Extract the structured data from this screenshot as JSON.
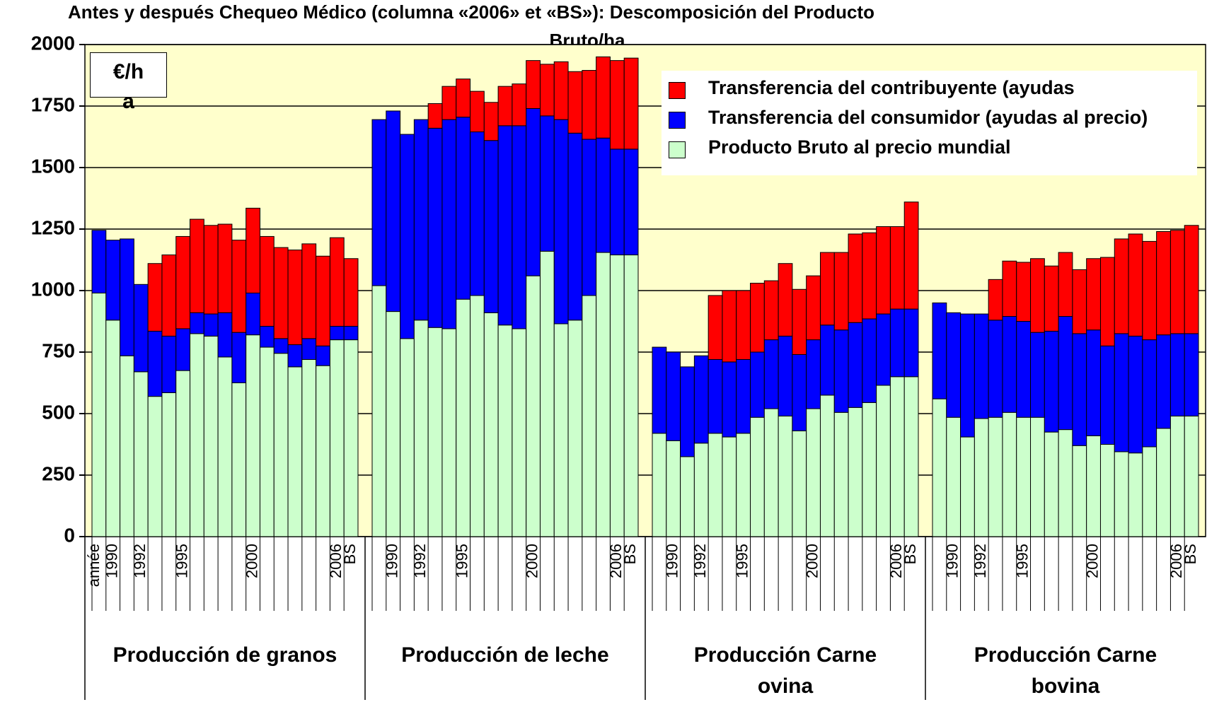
{
  "chart_data": {
    "type": "bar",
    "stacked": true,
    "title": [
      "Antes y después Chequeo Médico (columna  «2006» et  «BS»): Descomposición del Producto",
      "Bruto/ha"
    ],
    "ylabel": "€/ha",
    "xlabel": "année",
    "group_labels": [
      "Producción de granos",
      "Producción de leche",
      "Producción Carne ovina",
      "Producción Carne bovina"
    ],
    "categories": [
      null,
      "1990",
      null,
      "1992",
      null,
      null,
      "1995",
      null,
      null,
      null,
      null,
      "2000",
      null,
      null,
      null,
      null,
      null,
      "2006",
      "BS",
      null,
      "1990",
      null,
      "1992",
      null,
      null,
      "1995",
      null,
      null,
      null,
      null,
      "2000",
      null,
      null,
      null,
      null,
      null,
      "2006",
      "BS",
      null,
      "1990",
      null,
      "1992",
      null,
      null,
      "1995",
      null,
      null,
      null,
      null,
      "2000",
      null,
      null,
      null,
      null,
      null,
      "2006",
      "BS",
      null,
      "1990",
      null,
      "1992",
      null,
      null,
      "1995",
      null,
      null,
      null,
      null,
      "2000",
      null,
      null,
      null,
      null,
      null,
      "2006",
      "BS"
    ],
    "series": [
      {
        "name": "Producto Bruto al precio mundial",
        "color": "#ccffcc",
        "values": [
          990,
          880,
          735,
          670,
          570,
          585,
          675,
          825,
          815,
          730,
          625,
          820,
          770,
          745,
          690,
          720,
          695,
          800,
          800,
          1020,
          915,
          805,
          880,
          850,
          845,
          965,
          980,
          910,
          860,
          845,
          1060,
          1160,
          865,
          880,
          980,
          1155,
          1145,
          1145,
          420,
          390,
          325,
          380,
          420,
          405,
          420,
          485,
          520,
          490,
          430,
          520,
          575,
          505,
          525,
          545,
          615,
          650,
          650,
          560,
          485,
          405,
          480,
          485,
          505,
          485,
          485,
          425,
          435,
          370,
          410,
          375,
          345,
          340,
          365,
          440,
          490,
          490
        ]
      },
      {
        "name": "Transferencia del consumidor (ayudas al precio)",
        "color": "#0000ff",
        "values": [
          255,
          325,
          475,
          355,
          265,
          230,
          170,
          85,
          90,
          180,
          205,
          170,
          85,
          60,
          90,
          85,
          80,
          55,
          55,
          675,
          815,
          830,
          815,
          810,
          850,
          740,
          665,
          700,
          810,
          825,
          680,
          550,
          830,
          760,
          635,
          465,
          430,
          430,
          350,
          360,
          365,
          355,
          300,
          305,
          300,
          265,
          280,
          325,
          310,
          280,
          285,
          335,
          345,
          340,
          290,
          275,
          275,
          390,
          425,
          500,
          425,
          395,
          390,
          390,
          345,
          410,
          460,
          455,
          430,
          400,
          480,
          475,
          435,
          380,
          335,
          335
        ]
      },
      {
        "name": "Transferencia del contribuyente (ayudas",
        "color": "#ff0000",
        "values": [
          0,
          0,
          0,
          0,
          275,
          330,
          375,
          380,
          360,
          360,
          375,
          345,
          365,
          370,
          385,
          385,
          365,
          360,
          275,
          0,
          0,
          0,
          0,
          100,
          135,
          155,
          165,
          155,
          160,
          170,
          195,
          210,
          235,
          250,
          280,
          330,
          360,
          370,
          0,
          0,
          0,
          0,
          260,
          290,
          280,
          280,
          240,
          295,
          265,
          260,
          295,
          315,
          360,
          350,
          355,
          335,
          435,
          0,
          0,
          0,
          0,
          165,
          225,
          240,
          300,
          265,
          260,
          260,
          290,
          360,
          385,
          415,
          400,
          420,
          420,
          440
        ]
      }
    ],
    "ylim": [
      0,
      2000
    ],
    "yticks": [
      0,
      250,
      500,
      750,
      1000,
      1250,
      1500,
      1750,
      2000
    ],
    "grid": true,
    "background": "#ffffcc"
  }
}
